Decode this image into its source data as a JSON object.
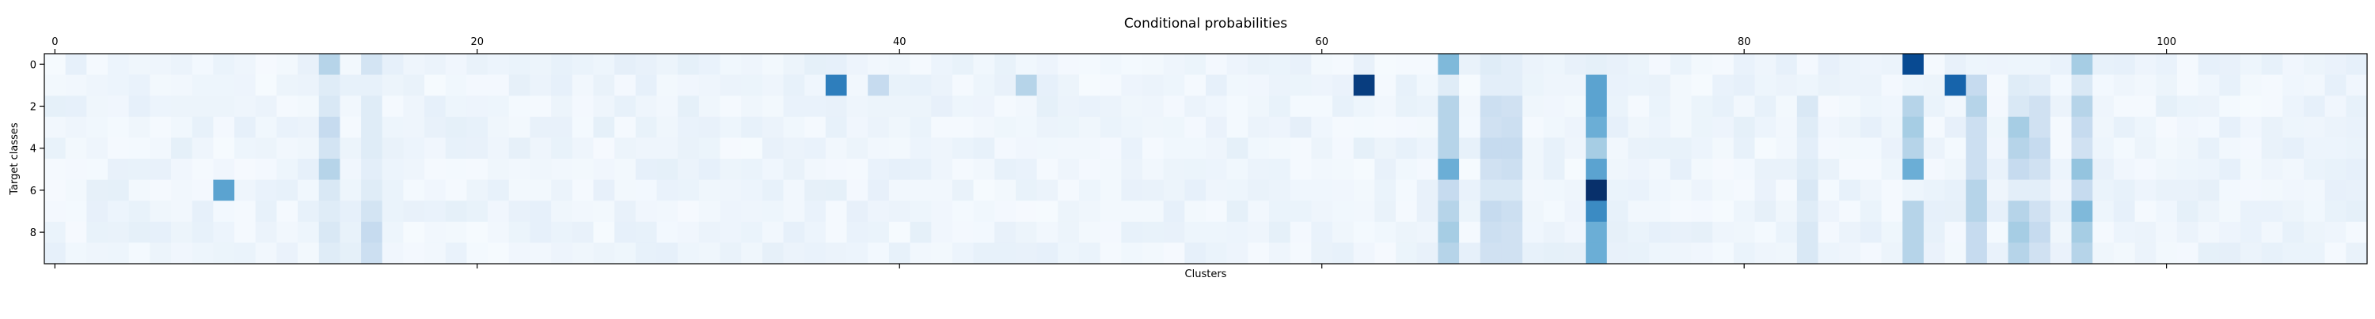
{
  "chart_data": {
    "type": "heatmap",
    "title": "Conditional probabilities",
    "xlabel": "Clusters",
    "ylabel": "Target classes",
    "xlim": [
      -0.5,
      109.5
    ],
    "ylim": [
      9.5,
      -0.5
    ],
    "x_ticks": [
      0,
      20,
      40,
      60,
      80,
      100
    ],
    "y_ticks": [
      0,
      2,
      4,
      6,
      8
    ],
    "x_tick_labels": [
      "0",
      "20",
      "40",
      "60",
      "80",
      "100"
    ],
    "y_tick_labels": [
      "0",
      "2",
      "4",
      "6",
      "8"
    ],
    "colormap": "Blues",
    "vmin": 0,
    "vmax": 1,
    "n_clusters": 110,
    "n_classes": 10,
    "x_axis_ticks_top_and_bottom": true,
    "x_tick_labels_position": "top",
    "grid": false,
    "legend": "none",
    "peaks": [
      {
        "cluster": 37,
        "class": 1,
        "value": 0.7
      },
      {
        "cluster": 39,
        "class": 1,
        "value": 0.25
      },
      {
        "cluster": 46,
        "class": 1,
        "value": 0.3
      },
      {
        "cluster": 62,
        "class": 1,
        "value": 0.95
      },
      {
        "cluster": 88,
        "class": 0,
        "value": 0.9
      },
      {
        "cluster": 90,
        "class": 1,
        "value": 0.8
      },
      {
        "cluster": 73,
        "class": 6,
        "value": 1.0
      },
      {
        "cluster": 73,
        "class": 7,
        "value": 0.65
      },
      {
        "cluster": 73,
        "class": 1,
        "value": 0.55
      },
      {
        "cluster": 73,
        "class": 2,
        "value": 0.55
      },
      {
        "cluster": 73,
        "class": 3,
        "value": 0.5
      },
      {
        "cluster": 73,
        "class": 5,
        "value": 0.55
      },
      {
        "cluster": 73,
        "class": 8,
        "value": 0.5
      },
      {
        "cluster": 73,
        "class": 9,
        "value": 0.5
      },
      {
        "cluster": 73,
        "class": 4,
        "value": 0.35
      },
      {
        "cluster": 8,
        "class": 6,
        "value": 0.55
      },
      {
        "cluster": 66,
        "class": 0,
        "value": 0.45
      },
      {
        "cluster": 66,
        "class": 5,
        "value": 0.5
      },
      {
        "cluster": 88,
        "class": 5,
        "value": 0.5
      },
      {
        "cluster": 96,
        "class": 7,
        "value": 0.45
      },
      {
        "cluster": 96,
        "class": 0,
        "value": 0.35
      }
    ],
    "column_profiles": [
      {
        "cluster": 13,
        "values": [
          0.3,
          0.12,
          0.15,
          0.25,
          0.18,
          0.3,
          0.15,
          0.12,
          0.15,
          0.12
        ]
      },
      {
        "cluster": 15,
        "values": [
          0.18,
          0.08,
          0.12,
          0.12,
          0.12,
          0.1,
          0.12,
          0.18,
          0.25,
          0.22
        ]
      },
      {
        "cluster": 66,
        "values": [
          0.45,
          0.12,
          0.3,
          0.3,
          0.3,
          0.5,
          0.25,
          0.3,
          0.35,
          0.3
        ]
      },
      {
        "cluster": 68,
        "values": [
          0.12,
          0.1,
          0.22,
          0.2,
          0.25,
          0.2,
          0.15,
          0.25,
          0.22,
          0.2
        ]
      },
      {
        "cluster": 69,
        "values": [
          0.1,
          0.1,
          0.2,
          0.22,
          0.25,
          0.22,
          0.15,
          0.22,
          0.2,
          0.2
        ]
      },
      {
        "cluster": 83,
        "values": [
          0.02,
          0.05,
          0.15,
          0.12,
          0.1,
          0.12,
          0.15,
          0.12,
          0.15,
          0.15
        ]
      },
      {
        "cluster": 88,
        "values": [
          0.9,
          0.05,
          0.3,
          0.35,
          0.3,
          0.5,
          0.05,
          0.3,
          0.3,
          0.3
        ]
      },
      {
        "cluster": 91,
        "values": [
          0.05,
          0.25,
          0.3,
          0.22,
          0.22,
          0.22,
          0.3,
          0.3,
          0.25,
          0.25
        ]
      },
      {
        "cluster": 93,
        "values": [
          0.05,
          0.12,
          0.15,
          0.35,
          0.3,
          0.25,
          0.1,
          0.3,
          0.35,
          0.3
        ]
      },
      {
        "cluster": 94,
        "values": [
          0.05,
          0.1,
          0.2,
          0.2,
          0.25,
          0.2,
          0.1,
          0.2,
          0.25,
          0.2
        ]
      },
      {
        "cluster": 96,
        "values": [
          0.35,
          0.15,
          0.3,
          0.25,
          0.2,
          0.4,
          0.25,
          0.45,
          0.35,
          0.3
        ]
      }
    ]
  }
}
